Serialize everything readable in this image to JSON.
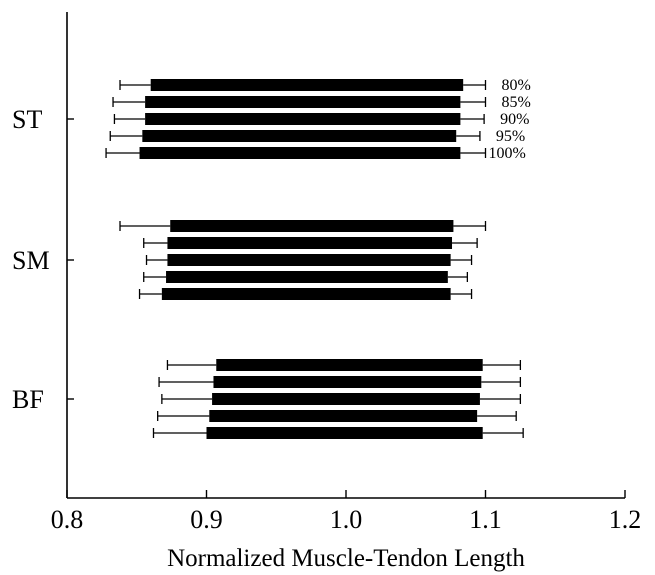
{
  "chart_data": {
    "type": "bar",
    "orientation": "horizontal",
    "style": "floating range bars with whiskers",
    "xlabel": "Normalized Muscle-Tendon Length",
    "xlim": [
      0.8,
      1.2
    ],
    "xticks": [
      "0.8",
      "0.9",
      "1.0",
      "1.1",
      "1.2"
    ],
    "categories": [
      "ST",
      "SM",
      "BF"
    ],
    "series_labels": [
      "80%",
      "85%",
      "90%",
      "95%",
      "100%"
    ],
    "series_labels_shown_for": "ST",
    "grid": false,
    "groups": [
      {
        "category": "ST",
        "bars": [
          {
            "series": "80%",
            "bar_start": 0.86,
            "bar_end": 1.084,
            "whisker_min": 0.838,
            "whisker_max": 1.1
          },
          {
            "series": "85%",
            "bar_start": 0.856,
            "bar_end": 1.082,
            "whisker_min": 0.833,
            "whisker_max": 1.1
          },
          {
            "series": "90%",
            "bar_start": 0.856,
            "bar_end": 1.082,
            "whisker_min": 0.834,
            "whisker_max": 1.099
          },
          {
            "series": "95%",
            "bar_start": 0.854,
            "bar_end": 1.079,
            "whisker_min": 0.831,
            "whisker_max": 1.096
          },
          {
            "series": "100%",
            "bar_start": 0.852,
            "bar_end": 1.082,
            "whisker_min": 0.828,
            "whisker_max": 1.1
          }
        ]
      },
      {
        "category": "SM",
        "bars": [
          {
            "series": "80%",
            "bar_start": 0.874,
            "bar_end": 1.077,
            "whisker_min": 0.838,
            "whisker_max": 1.1
          },
          {
            "series": "85%",
            "bar_start": 0.872,
            "bar_end": 1.076,
            "whisker_min": 0.855,
            "whisker_max": 1.094
          },
          {
            "series": "90%",
            "bar_start": 0.872,
            "bar_end": 1.075,
            "whisker_min": 0.857,
            "whisker_max": 1.09
          },
          {
            "series": "95%",
            "bar_start": 0.871,
            "bar_end": 1.073,
            "whisker_min": 0.855,
            "whisker_max": 1.087
          },
          {
            "series": "100%",
            "bar_start": 0.868,
            "bar_end": 1.075,
            "whisker_min": 0.852,
            "whisker_max": 1.09
          }
        ]
      },
      {
        "category": "BF",
        "bars": [
          {
            "series": "80%",
            "bar_start": 0.907,
            "bar_end": 1.098,
            "whisker_min": 0.872,
            "whisker_max": 1.125
          },
          {
            "series": "85%",
            "bar_start": 0.905,
            "bar_end": 1.097,
            "whisker_min": 0.866,
            "whisker_max": 1.125
          },
          {
            "series": "90%",
            "bar_start": 0.904,
            "bar_end": 1.096,
            "whisker_min": 0.868,
            "whisker_max": 1.125
          },
          {
            "series": "95%",
            "bar_start": 0.902,
            "bar_end": 1.094,
            "whisker_min": 0.865,
            "whisker_max": 1.122
          },
          {
            "series": "100%",
            "bar_start": 0.9,
            "bar_end": 1.098,
            "whisker_min": 0.862,
            "whisker_max": 1.127
          }
        ]
      }
    ]
  }
}
